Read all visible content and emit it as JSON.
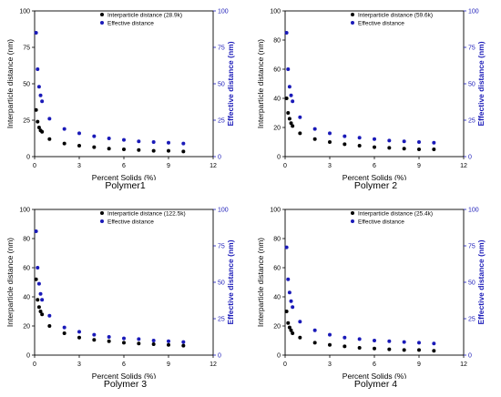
{
  "figure": {
    "title": ""
  },
  "colors": {
    "series1": "#000000",
    "series2": "#1a1ab8",
    "right_axis": "#1a1ab8",
    "frame": "#000000"
  },
  "chart_data": [
    {
      "type": "scatter",
      "caption": "Polymer1",
      "xlabel": "Percent Solids (%)",
      "ylabel": "Interparticle distance (nm)",
      "y2label": "Effective distance (nm)",
      "xlim": [
        0,
        12
      ],
      "ylim": [
        0,
        100
      ],
      "y2lim": [
        0,
        100
      ],
      "xticks": [
        0,
        3,
        6,
        9,
        12
      ],
      "yticks": [
        0,
        25,
        50,
        75,
        100
      ],
      "y2ticks": [
        0,
        25,
        50,
        75,
        100
      ],
      "legend_position": "top-right",
      "series": [
        {
          "name": "Interparticle distance (28.9k)",
          "axis": "left",
          "x": [
            0.1,
            0.2,
            0.3,
            0.4,
            0.5,
            1.0,
            2.0,
            3.0,
            4.0,
            5.0,
            6.0,
            7.0,
            8.0,
            9.0,
            10.0
          ],
          "y": [
            32,
            24,
            20,
            18,
            17,
            12,
            9,
            7.5,
            6.5,
            5.5,
            5,
            4.5,
            4,
            4,
            3.5
          ]
        },
        {
          "name": "Effective distance",
          "axis": "right",
          "x": [
            0.1,
            0.2,
            0.3,
            0.4,
            0.5,
            1.0,
            2.0,
            3.0,
            4.0,
            5.0,
            6.0,
            7.0,
            8.0,
            9.0,
            10.0
          ],
          "y": [
            85,
            60,
            48,
            42,
            38,
            26,
            19,
            16,
            14,
            12.5,
            11.5,
            10.5,
            10,
            9.5,
            9
          ]
        }
      ]
    },
    {
      "type": "scatter",
      "caption": "Polymer 2",
      "xlabel": "Percent Solids (%)",
      "ylabel": "Interparticle distance (nm)",
      "y2label": "Effective distance (nm)",
      "xlim": [
        0,
        12
      ],
      "ylim": [
        0,
        100
      ],
      "y2lim": [
        0,
        100
      ],
      "xticks": [
        0,
        3,
        6,
        9,
        12
      ],
      "yticks": [
        0,
        20,
        40,
        60,
        80,
        100
      ],
      "y2ticks": [
        0,
        25,
        50,
        75,
        100
      ],
      "legend_position": "top-right",
      "series": [
        {
          "name": "Interparticle distance (59.6k)",
          "axis": "left",
          "x": [
            0.1,
            0.2,
            0.3,
            0.4,
            0.5,
            1.0,
            2.0,
            3.0,
            4.0,
            5.0,
            6.0,
            7.0,
            8.0,
            9.0,
            10.0
          ],
          "y": [
            40,
            30,
            26,
            23,
            21,
            16,
            12,
            10,
            8.5,
            7.5,
            6.5,
            6,
            5.5,
            5,
            5
          ]
        },
        {
          "name": "Effective distance",
          "axis": "right",
          "x": [
            0.1,
            0.2,
            0.3,
            0.4,
            0.5,
            1.0,
            2.0,
            3.0,
            4.0,
            5.0,
            6.0,
            7.0,
            8.0,
            9.0,
            10.0
          ],
          "y": [
            85,
            60,
            48,
            42,
            38,
            27,
            19,
            16,
            14,
            13,
            12,
            11,
            10.5,
            10,
            9.5
          ]
        }
      ]
    },
    {
      "type": "scatter",
      "caption": "Polymer 3",
      "xlabel": "Percent Solids (%)",
      "ylabel": "Interparticle distance (nm)",
      "y2label": "Effective distance (nm)",
      "xlim": [
        0,
        12
      ],
      "ylim": [
        0,
        100
      ],
      "y2lim": [
        0,
        100
      ],
      "xticks": [
        0,
        3,
        6,
        9,
        12
      ],
      "yticks": [
        0,
        20,
        40,
        60,
        80,
        100
      ],
      "y2ticks": [
        0,
        25,
        50,
        75,
        100
      ],
      "legend_position": "top-right",
      "series": [
        {
          "name": "Interparticle distance (122.5k)",
          "axis": "left",
          "x": [
            0.1,
            0.2,
            0.3,
            0.4,
            0.5,
            1.0,
            2.0,
            3.0,
            4.0,
            5.0,
            6.0,
            7.0,
            8.0,
            9.0,
            10.0
          ],
          "y": [
            52,
            38,
            33,
            30,
            28,
            20,
            15,
            12,
            10.5,
            9.5,
            8.5,
            8,
            7.5,
            7,
            6.5
          ]
        },
        {
          "name": "Effective distance",
          "axis": "right",
          "x": [
            0.1,
            0.2,
            0.3,
            0.4,
            0.5,
            1.0,
            2.0,
            3.0,
            4.0,
            5.0,
            6.0,
            7.0,
            8.0,
            9.0,
            10.0
          ],
          "y": [
            85,
            60,
            49,
            42,
            38,
            27,
            19,
            16,
            14,
            12.5,
            11.5,
            11,
            10,
            9.5,
            9
          ]
        }
      ]
    },
    {
      "type": "scatter",
      "caption": "Polymer 4",
      "xlabel": "Percent Solids (%)",
      "ylabel": "Interparticle distance (nm)",
      "y2label": "Effective distance (nm)",
      "xlim": [
        0,
        12
      ],
      "ylim": [
        0,
        100
      ],
      "y2lim": [
        0,
        100
      ],
      "xticks": [
        0,
        3,
        6,
        9,
        12
      ],
      "yticks": [
        0,
        20,
        40,
        60,
        80,
        100
      ],
      "y2ticks": [
        0,
        25,
        50,
        75,
        100
      ],
      "legend_position": "top-right",
      "series": [
        {
          "name": "Interparticle distance (25.4k)",
          "axis": "left",
          "x": [
            0.1,
            0.2,
            0.3,
            0.4,
            0.5,
            1.0,
            2.0,
            3.0,
            4.0,
            5.0,
            6.0,
            7.0,
            8.0,
            9.0,
            10.0
          ],
          "y": [
            30,
            22,
            19,
            17,
            15,
            12,
            8.5,
            7,
            6,
            5,
            4.5,
            4,
            3.5,
            3.5,
            3
          ]
        },
        {
          "name": "Effective distance",
          "axis": "right",
          "x": [
            0.1,
            0.2,
            0.3,
            0.4,
            0.5,
            1.0,
            2.0,
            3.0,
            4.0,
            5.0,
            6.0,
            7.0,
            8.0,
            9.0,
            10.0
          ],
          "y": [
            74,
            52,
            43,
            37,
            33,
            23,
            17,
            14,
            12,
            11,
            10,
            9.5,
            9,
            8.5,
            8
          ]
        }
      ]
    }
  ]
}
